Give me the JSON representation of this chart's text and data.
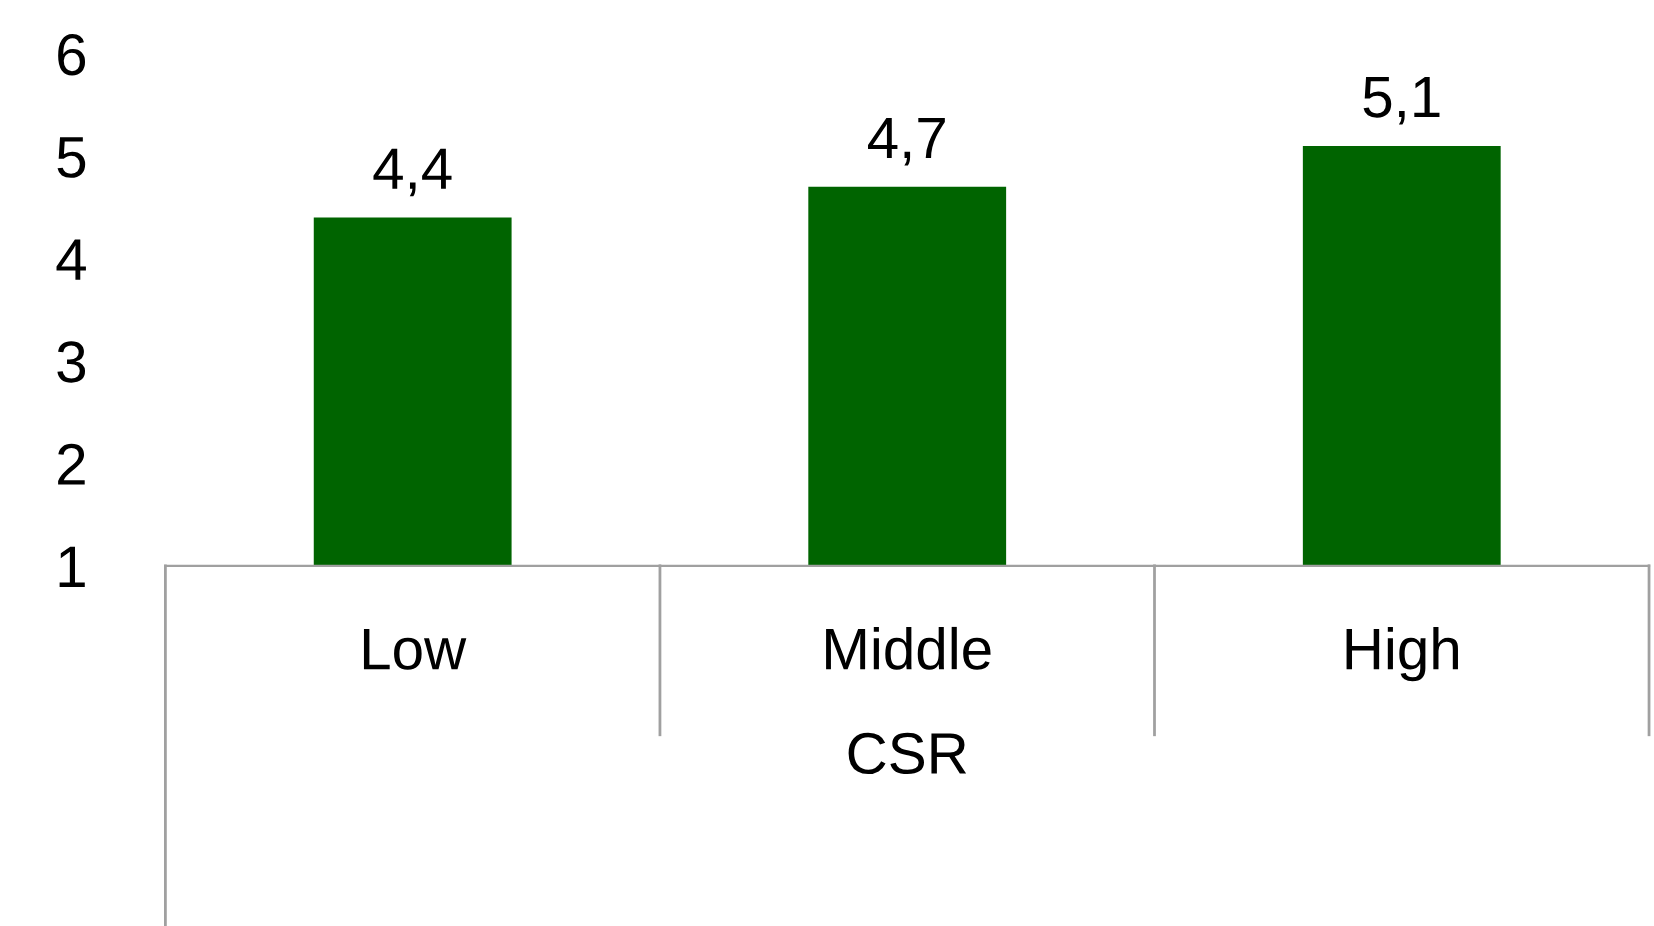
{
  "chart_data": {
    "type": "bar",
    "xlabel": "CSR",
    "categories": [
      "Low",
      "Middle",
      "High"
    ],
    "values": [
      4.4,
      4.7,
      5.1
    ],
    "color": "#006400",
    "value_labels": [
      "4,4",
      "4,7",
      "5,1"
    ],
    "ylim": [
      1,
      6
    ],
    "yticks": [
      1,
      2,
      3,
      4,
      5,
      6
    ],
    "grid": false,
    "legend": false
  }
}
